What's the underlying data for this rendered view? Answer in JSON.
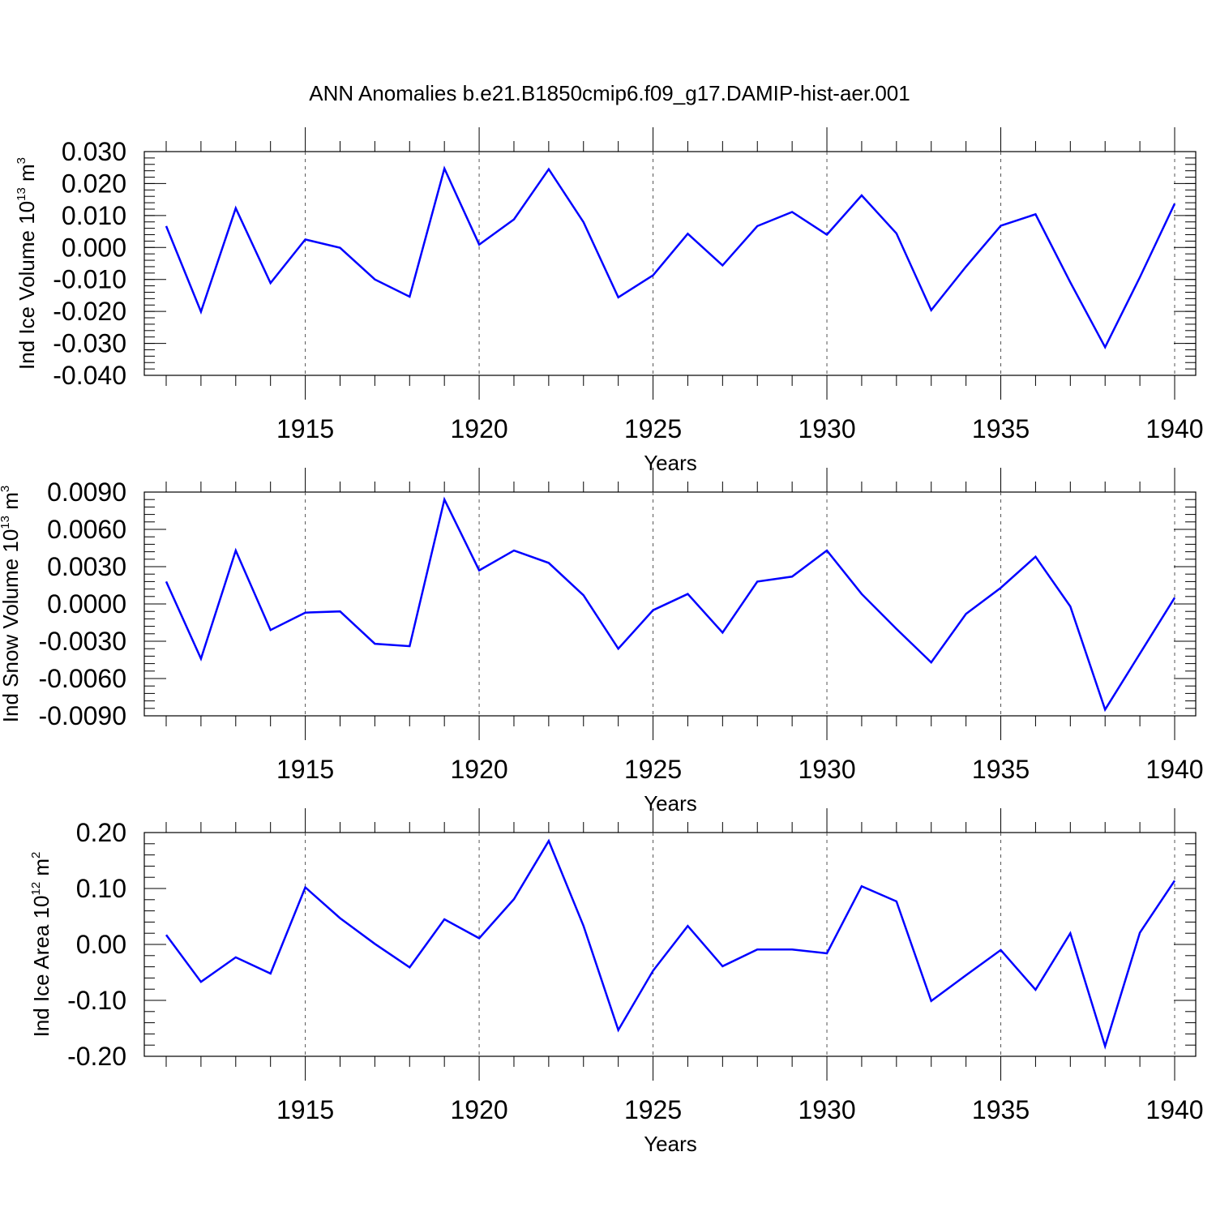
{
  "figure": {
    "title": "ANN Anomalies b.e21.B1850cmip6.f09_g17.DAMIP-hist-aer.001",
    "line_color": "#0000ff"
  },
  "chart_data": [
    {
      "type": "line",
      "ylabel_text": "Ind Ice Volume 10",
      "ylabel_exp": "13",
      "ylabel_unit": "m",
      "ylabel_unit_exp": "3",
      "xlabel": "Years",
      "xlim": [
        1911,
        1940
      ],
      "ylim": [
        -0.04,
        0.03
      ],
      "yticks": [
        -0.04,
        -0.03,
        -0.02,
        -0.01,
        0.0,
        0.01,
        0.02,
        0.03
      ],
      "yticklabels": [
        "-0.040",
        "-0.030",
        "-0.020",
        "-0.010",
        "0.000",
        "0.010",
        "0.020",
        "0.030"
      ],
      "yminor_step": 0.002,
      "xticks": [
        1915,
        1920,
        1925,
        1930,
        1935,
        1940
      ],
      "xticklabels": [
        "1915",
        "1920",
        "1925",
        "1930",
        "1935",
        "1940"
      ],
      "x": [
        1911,
        1912,
        1913,
        1914,
        1915,
        1916,
        1917,
        1918,
        1919,
        1920,
        1921,
        1922,
        1923,
        1924,
        1925,
        1926,
        1927,
        1928,
        1929,
        1930,
        1931,
        1932,
        1933,
        1934,
        1935,
        1936,
        1937,
        1938,
        1939,
        1940
      ],
      "y": [
        0.0067,
        -0.0201,
        0.0123,
        -0.0111,
        0.0025,
        -0.0001,
        -0.01,
        -0.0154,
        0.0247,
        0.0009,
        0.0088,
        0.0245,
        0.0079,
        -0.0156,
        -0.0087,
        0.0043,
        -0.0056,
        0.0067,
        0.0111,
        0.004,
        0.0163,
        0.0044,
        -0.0196,
        -0.006,
        0.0068,
        0.0104,
        -0.0109,
        -0.0312,
        -0.0093,
        0.0137
      ]
    },
    {
      "type": "line",
      "ylabel_text": "Ind Snow Volume 10",
      "ylabel_exp": "13",
      "ylabel_unit": "m",
      "ylabel_unit_exp": "3",
      "xlabel": "Years",
      "xlim": [
        1911,
        1940
      ],
      "ylim": [
        -0.009,
        0.009
      ],
      "yticks": [
        -0.009,
        -0.006,
        -0.003,
        0.0,
        0.003,
        0.006,
        0.009
      ],
      "yticklabels": [
        "-0.0090",
        "-0.0060",
        "-0.0030",
        "0.0000",
        "0.0030",
        "0.0060",
        "0.0090"
      ],
      "yminor_step": 0.0006,
      "xticks": [
        1915,
        1920,
        1925,
        1930,
        1935,
        1940
      ],
      "xticklabels": [
        "1915",
        "1920",
        "1925",
        "1930",
        "1935",
        "1940"
      ],
      "x": [
        1911,
        1912,
        1913,
        1914,
        1915,
        1916,
        1917,
        1918,
        1919,
        1920,
        1921,
        1922,
        1923,
        1924,
        1925,
        1926,
        1927,
        1928,
        1929,
        1930,
        1931,
        1932,
        1933,
        1934,
        1935,
        1936,
        1937,
        1938,
        1939,
        1940
      ],
      "y": [
        0.0018,
        -0.0044,
        0.0043,
        -0.0021,
        -0.0007,
        -0.0006,
        -0.0032,
        -0.0034,
        0.0084,
        0.0027,
        0.0043,
        0.0033,
        0.0007,
        -0.0036,
        -0.0005,
        0.0008,
        -0.0023,
        0.0018,
        0.0022,
        0.0043,
        0.0008,
        -0.002,
        -0.0047,
        -0.0008,
        0.0013,
        0.0038,
        -0.0002,
        -0.0085,
        -0.004,
        0.0005
      ]
    },
    {
      "type": "line",
      "ylabel_text": "Ind Ice Area 10",
      "ylabel_exp": "12",
      "ylabel_unit": "m",
      "ylabel_unit_exp": "2",
      "xlabel": "Years",
      "xlim": [
        1911,
        1940
      ],
      "ylim": [
        -0.2,
        0.2
      ],
      "yticks": [
        -0.2,
        -0.1,
        0.0,
        0.1,
        0.2
      ],
      "yticklabels": [
        "-0.20",
        "-0.10",
        "0.00",
        "0.10",
        "0.20"
      ],
      "yminor_step": 0.02,
      "xticks": [
        1915,
        1920,
        1925,
        1930,
        1935,
        1940
      ],
      "xticklabels": [
        "1915",
        "1920",
        "1925",
        "1930",
        "1935",
        "1940"
      ],
      "x": [
        1911,
        1912,
        1913,
        1914,
        1915,
        1916,
        1917,
        1918,
        1919,
        1920,
        1921,
        1922,
        1923,
        1924,
        1925,
        1926,
        1927,
        1928,
        1929,
        1930,
        1931,
        1932,
        1933,
        1934,
        1935,
        1936,
        1937,
        1938,
        1939,
        1940
      ],
      "y": [
        0.017,
        -0.067,
        -0.023,
        -0.052,
        0.102,
        0.047,
        0.001,
        -0.041,
        0.045,
        0.011,
        0.081,
        0.185,
        0.033,
        -0.153,
        -0.047,
        0.033,
        -0.039,
        -0.009,
        -0.009,
        -0.016,
        0.104,
        0.077,
        -0.101,
        -0.055,
        -0.01,
        -0.081,
        0.02,
        -0.182,
        0.021,
        0.114
      ]
    }
  ]
}
